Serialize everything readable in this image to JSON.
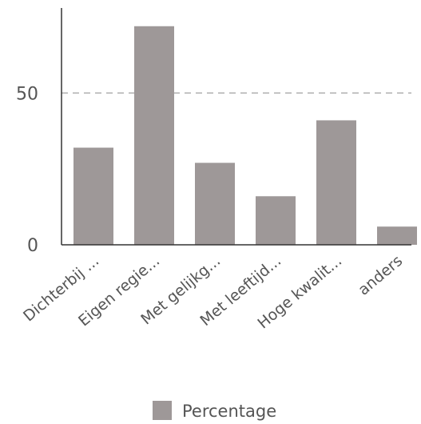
{
  "chart_data": {
    "type": "bar",
    "categories": [
      "Dichterbij ...",
      "Eigen regie...",
      "Met gelijkg...",
      "Met leeftijd...",
      "Hoge kwalit...",
      "anders"
    ],
    "series": [
      {
        "name": "Percentage",
        "values": [
          32,
          72,
          27,
          16,
          41,
          6
        ],
        "color": "#9e9898"
      }
    ],
    "yticks": [
      0,
      50
    ],
    "ylim": [
      0,
      78
    ],
    "gridline_style": "dashed",
    "grid": "horizontal dashed at 50",
    "legend_position": "bottom-center",
    "title": "",
    "xlabel": "",
    "ylabel": ""
  }
}
